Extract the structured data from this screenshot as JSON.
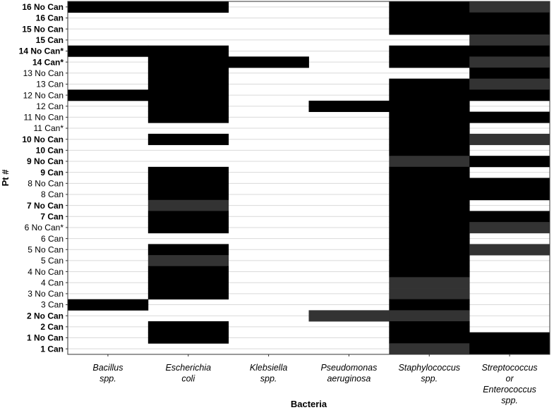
{
  "chart_data": {
    "type": "heatmap",
    "xlabel": "Bacteria",
    "ylabel": "Pt #",
    "legend": "none",
    "grid": true,
    "colors": {
      "dark": "#000000",
      "medium": "#333333",
      "background": "#ffffff",
      "grid": "#d9d9d9"
    },
    "categories_x": [
      [
        "Bacillus",
        "spp."
      ],
      [
        "Escherichia",
        "coli"
      ],
      [
        "Klebsiella",
        "spp."
      ],
      [
        "Pseudomonas",
        "aeruginosa"
      ],
      [
        "Staphylococcus",
        "spp."
      ],
      [
        "Streptococcus",
        "or",
        "Enterococcus",
        "spp."
      ]
    ],
    "categories_y": [
      {
        "label": "16 No Can",
        "bold": true
      },
      {
        "label": "16 Can",
        "bold": true
      },
      {
        "label": "15 No Can",
        "bold": true
      },
      {
        "label": "15 Can",
        "bold": true
      },
      {
        "label": "14 No Can*",
        "bold": true
      },
      {
        "label": "14 Can*",
        "bold": true
      },
      {
        "label": "13 No Can",
        "bold": false
      },
      {
        "label": "13 Can",
        "bold": false
      },
      {
        "label": "12 No Can",
        "bold": false
      },
      {
        "label": "12 Can",
        "bold": false
      },
      {
        "label": "11 No Can",
        "bold": false
      },
      {
        "label": "11 Can*",
        "bold": false
      },
      {
        "label": "10 No Can",
        "bold": true
      },
      {
        "label": "10 Can",
        "bold": true
      },
      {
        "label": "9 No Can",
        "bold": true
      },
      {
        "label": "9 Can",
        "bold": true
      },
      {
        "label": "8 No Can",
        "bold": false
      },
      {
        "label": "8 Can",
        "bold": false
      },
      {
        "label": "7 No Can",
        "bold": true
      },
      {
        "label": "7 Can",
        "bold": true
      },
      {
        "label": "6 No Can*",
        "bold": false
      },
      {
        "label": "6 Can",
        "bold": false
      },
      {
        "label": "5 No Can",
        "bold": false
      },
      {
        "label": "5 Can",
        "bold": false
      },
      {
        "label": "4 No Can",
        "bold": false
      },
      {
        "label": "4 Can",
        "bold": false
      },
      {
        "label": "3 No Can",
        "bold": false
      },
      {
        "label": "3 Can",
        "bold": false
      },
      {
        "label": "2 No Can",
        "bold": true
      },
      {
        "label": "2 Can",
        "bold": true
      },
      {
        "label": "1 No Can",
        "bold": true
      },
      {
        "label": "1 Can",
        "bold": true
      }
    ],
    "values": [
      [
        2,
        2,
        0,
        0,
        2,
        1
      ],
      [
        0,
        0,
        0,
        0,
        2,
        2
      ],
      [
        0,
        0,
        0,
        0,
        2,
        2
      ],
      [
        0,
        0,
        0,
        0,
        0,
        1
      ],
      [
        2,
        2,
        0,
        0,
        2,
        2
      ],
      [
        0,
        2,
        2,
        0,
        2,
        1
      ],
      [
        0,
        2,
        0,
        0,
        0,
        2
      ],
      [
        0,
        2,
        0,
        0,
        2,
        1
      ],
      [
        2,
        2,
        0,
        0,
        2,
        2
      ],
      [
        0,
        2,
        0,
        2,
        2,
        0
      ],
      [
        0,
        2,
        0,
        0,
        2,
        2
      ],
      [
        0,
        0,
        0,
        0,
        2,
        0
      ],
      [
        0,
        2,
        0,
        0,
        2,
        1
      ],
      [
        0,
        0,
        0,
        0,
        2,
        0
      ],
      [
        0,
        0,
        0,
        0,
        1,
        2
      ],
      [
        0,
        2,
        0,
        0,
        2,
        0
      ],
      [
        0,
        2,
        0,
        0,
        2,
        2
      ],
      [
        0,
        2,
        0,
        0,
        2,
        2
      ],
      [
        0,
        1,
        0,
        0,
        2,
        0
      ],
      [
        0,
        2,
        0,
        0,
        2,
        2
      ],
      [
        0,
        2,
        0,
        0,
        2,
        1
      ],
      [
        0,
        0,
        0,
        0,
        2,
        0
      ],
      [
        0,
        2,
        0,
        0,
        2,
        1
      ],
      [
        0,
        1,
        0,
        0,
        2,
        0
      ],
      [
        0,
        2,
        0,
        0,
        2,
        0
      ],
      [
        0,
        2,
        0,
        0,
        1,
        0
      ],
      [
        0,
        2,
        0,
        0,
        1,
        0
      ],
      [
        2,
        0,
        0,
        0,
        2,
        0
      ],
      [
        0,
        0,
        0,
        1,
        1,
        0
      ],
      [
        0,
        2,
        0,
        0,
        2,
        0
      ],
      [
        0,
        2,
        0,
        0,
        2,
        2
      ],
      [
        0,
        0,
        0,
        0,
        1,
        2
      ]
    ]
  }
}
